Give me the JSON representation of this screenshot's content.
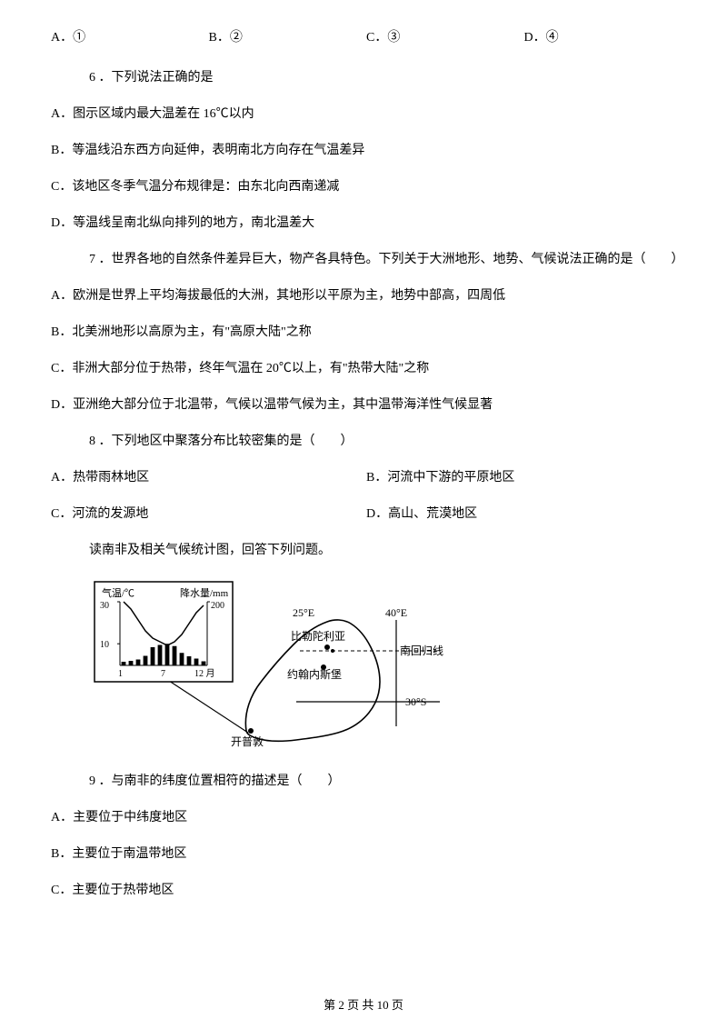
{
  "row1": {
    "a": "A．①",
    "b": "B．②",
    "c": "C．③",
    "d": "D．④"
  },
  "q6": {
    "stem": "6 ．下列说法正确的是",
    "a": "A．图示区域内最大温差在 16℃以内",
    "b": "B．等温线沿东西方向延伸，表明南北方向存在气温差异",
    "c": "C．该地区冬季气温分布规律是：由东北向西南递减",
    "d": "D．等温线呈南北纵向排列的地方，南北温差大"
  },
  "q7": {
    "stem": "7 ．世界各地的自然条件差异巨大，物产各具特色。下列关于大洲地形、地势、气候说法正确的是（　　）",
    "a": "A．欧洲是世界上平均海拔最低的大洲，其地形以平原为主，地势中部高，四周低",
    "b": "B．北美洲地形以高原为主，有\"高原大陆\"之称",
    "c": "C．非洲大部分位于热带，终年气温在 20℃以上，有\"热带大陆\"之称",
    "d": "D．亚洲绝大部分位于北温带，气候以温带气候为主，其中温带海洋性气候显著"
  },
  "q8": {
    "stem": "8 ．下列地区中聚落分布比较密集的是（　　）",
    "a": "A．热带雨林地区",
    "b": "B．河流中下游的平原地区",
    "c": "C．河流的发源地",
    "d": "D．高山、荒漠地区"
  },
  "passage1": "读南非及相关气候统计图，回答下列问题。",
  "diagram": {
    "tempLabel": "气温/℃",
    "precipLabel": "降水量/mm",
    "tempAxis": {
      "max": 30,
      "ticks": [
        "30",
        "10"
      ]
    },
    "precipAxis": {
      "max": 200,
      "tick": "200"
    },
    "xLabels": {
      "start": "1",
      "mid": "7",
      "end": "12 月"
    },
    "tempSeries": [
      30,
      26,
      20,
      14,
      10,
      8,
      6,
      8,
      12,
      18,
      24,
      28
    ],
    "precipSeries": [
      16,
      20,
      26,
      42,
      80,
      90,
      95,
      85,
      55,
      40,
      30,
      18
    ],
    "precipMaxPx": 50,
    "tempMaxPx": 60,
    "mapLabels": {
      "lon25": "25°E",
      "lon40": "40°E",
      "lat30": "30°S",
      "tropic": "南回归线",
      "pretoria": "比勒陀利亚",
      "johannesburg": "约翰内斯堡",
      "capetown": "开普敦"
    },
    "colors": {
      "stroke": "#000000",
      "bg": "#ffffff"
    }
  },
  "q9": {
    "stem": "9 ．与南非的纬度位置相符的描述是（　　）",
    "a": "A．主要位于中纬度地区",
    "b": "B．主要位于南温带地区",
    "c": "C．主要位于热带地区"
  },
  "footer": {
    "text": "第 2 页 共 10 页"
  }
}
